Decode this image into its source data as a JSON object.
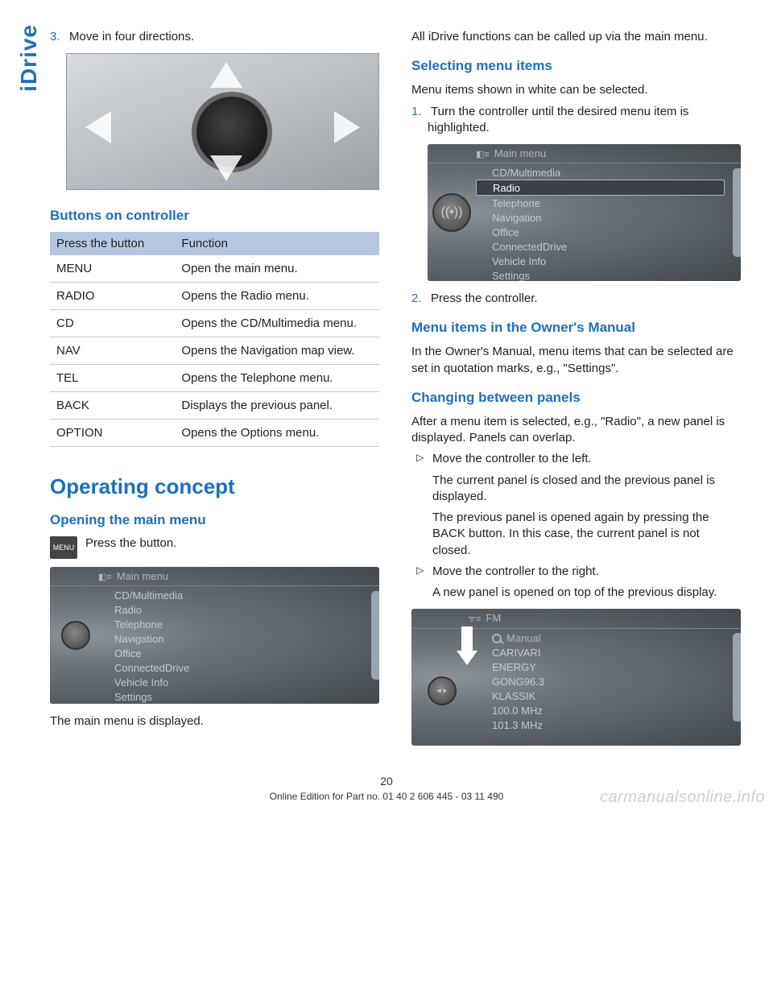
{
  "side_label": "iDrive",
  "left": {
    "step3_num": "3.",
    "step3_text": "Move in four directions.",
    "buttons_heading": "Buttons on controller",
    "table": {
      "head1": "Press the button",
      "head2": "Function",
      "rows": [
        {
          "b": "MENU",
          "f": "Open the main menu."
        },
        {
          "b": "RADIO",
          "f": "Opens the Radio menu."
        },
        {
          "b": "CD",
          "f": "Opens the CD/Multimedia menu."
        },
        {
          "b": "NAV",
          "f": "Opens the Navigation map view."
        },
        {
          "b": "TEL",
          "f": "Opens the Telephone menu."
        },
        {
          "b": "BACK",
          "f": "Displays the previous panel."
        },
        {
          "b": "OPTION",
          "f": "Opens the Options menu."
        }
      ]
    },
    "operating_concept": "Operating concept",
    "opening_main_menu": "Opening the main menu",
    "menu_icon_label": "MENU",
    "press_button": "Press the button.",
    "main_menu_displayed": "The main menu is displayed.",
    "screen1": {
      "title": "Main menu",
      "items": [
        "CD/Multimedia",
        "Radio",
        "Telephone",
        "Navigation",
        "Office",
        "ConnectedDrive",
        "Vehicle Info",
        "Settings"
      ]
    }
  },
  "right": {
    "intro": "All iDrive functions can be called up via the main menu.",
    "selecting_heading": "Selecting menu items",
    "selecting_intro": "Menu items shown in white can be selected.",
    "sel_step1_num": "1.",
    "sel_step1_text": "Turn the controller until the desired menu item is highlighted.",
    "screen2": {
      "title": "Main menu",
      "items": [
        "CD/Multimedia",
        "Radio",
        "Telephone",
        "Navigation",
        "Office",
        "ConnectedDrive",
        "Vehicle Info",
        "Settings"
      ],
      "selected_index": 1
    },
    "sel_step2_num": "2.",
    "sel_step2_text": "Press the controller.",
    "owners_heading": "Menu items in the Owner's Manual",
    "owners_text": "In the Owner's Manual, menu items that can be selected are set in quotation marks, e.g., \"Settings\".",
    "changing_heading": "Changing between panels",
    "changing_intro": "After a menu item is selected, e.g., \"Radio\", a new panel is displayed. Panels can overlap.",
    "bullets": [
      {
        "lead": "Move the controller to the left.",
        "p1": "The current panel is closed and the previous panel is displayed.",
        "p2": "The previous panel is opened again by pressing the BACK button. In this case, the current panel is not closed."
      },
      {
        "lead": "Move the controller to the right.",
        "p1": "A new panel is opened on top of the previous display."
      }
    ],
    "screen3": {
      "title": "FM",
      "items": [
        "Manual",
        "CARIVARI",
        "ENERGY",
        "GONG96.3",
        "KLASSIK",
        "100.0  MHz",
        "101.3  MHz"
      ]
    }
  },
  "footer": {
    "page": "20",
    "line": "Online Edition for Part no. 01 40 2 606 445 - 03 11 490"
  },
  "watermark": "carmanualsonline.info"
}
